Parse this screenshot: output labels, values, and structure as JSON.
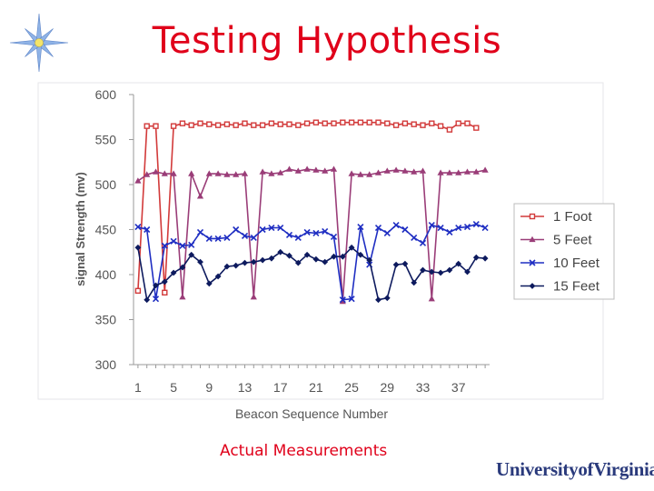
{
  "slide": {
    "title": "Testing Hypothesis",
    "caption": "Actual Measurements",
    "logo_text": "UniversityofVirginia",
    "decor_icon": "blue-star-icon"
  },
  "colors": {
    "title": "#e0001a",
    "logo": "#2a3a7c",
    "star": "#8fb3e6",
    "star_center": "#f4e46a"
  },
  "chart_data": {
    "type": "line",
    "xlabel": "Beacon Sequence Number",
    "ylabel": "signal Strength (mv)",
    "ylim": [
      300,
      600
    ],
    "yticks": [
      300,
      350,
      400,
      450,
      500,
      550,
      600
    ],
    "xlim": [
      0.5,
      40.5
    ],
    "xticks": [
      1,
      5,
      9,
      13,
      17,
      21,
      25,
      29,
      33,
      37
    ],
    "grid": false,
    "legend_position": "right",
    "x": [
      1,
      2,
      3,
      4,
      5,
      6,
      7,
      8,
      9,
      10,
      11,
      12,
      13,
      14,
      15,
      16,
      17,
      18,
      19,
      20,
      21,
      22,
      23,
      24,
      25,
      26,
      27,
      28,
      29,
      30,
      31,
      32,
      33,
      34,
      35,
      36,
      37,
      38,
      39,
      40
    ],
    "series": [
      {
        "name": "1 Foot",
        "color": "#d23a3a",
        "marker": "square",
        "values": [
          382,
          565,
          565,
          380,
          565,
          568,
          566,
          568,
          567,
          566,
          567,
          566,
          568,
          566,
          566,
          568,
          567,
          567,
          566,
          568,
          569,
          568,
          568,
          569,
          569,
          569,
          569,
          569,
          568,
          566,
          568,
          567,
          566,
          568,
          565,
          561,
          568,
          568,
          563,
          null
        ]
      },
      {
        "name": "5 Feet",
        "color": "#9a3d78",
        "marker": "triangle",
        "values": [
          504,
          511,
          514,
          512,
          512,
          375,
          512,
          487,
          512,
          512,
          511,
          511,
          512,
          375,
          514,
          512,
          513,
          517,
          515,
          517,
          516,
          515,
          517,
          370,
          512,
          511,
          511,
          513,
          515,
          516,
          515,
          514,
          515,
          373,
          513,
          513,
          513,
          514,
          514,
          516
        ]
      },
      {
        "name": "10 Feet",
        "color": "#1f2ec2",
        "marker": "x",
        "values": [
          453,
          450,
          373,
          432,
          437,
          432,
          433,
          447,
          440,
          440,
          441,
          450,
          443,
          441,
          450,
          452,
          452,
          444,
          441,
          447,
          446,
          448,
          442,
          372,
          373,
          453,
          411,
          452,
          446,
          455,
          450,
          441,
          435,
          455,
          452,
          447,
          452,
          453,
          456,
          452
        ]
      },
      {
        "name": "15 Feet",
        "color": "#0d1a5e",
        "marker": "diamond",
        "values": [
          430,
          372,
          388,
          392,
          402,
          408,
          422,
          414,
          390,
          398,
          409,
          410,
          413,
          414,
          416,
          418,
          425,
          421,
          413,
          422,
          417,
          414,
          420,
          420,
          430,
          422,
          416,
          372,
          374,
          411,
          412,
          391,
          405,
          403,
          402,
          405,
          412,
          403,
          419,
          418
        ]
      }
    ]
  }
}
